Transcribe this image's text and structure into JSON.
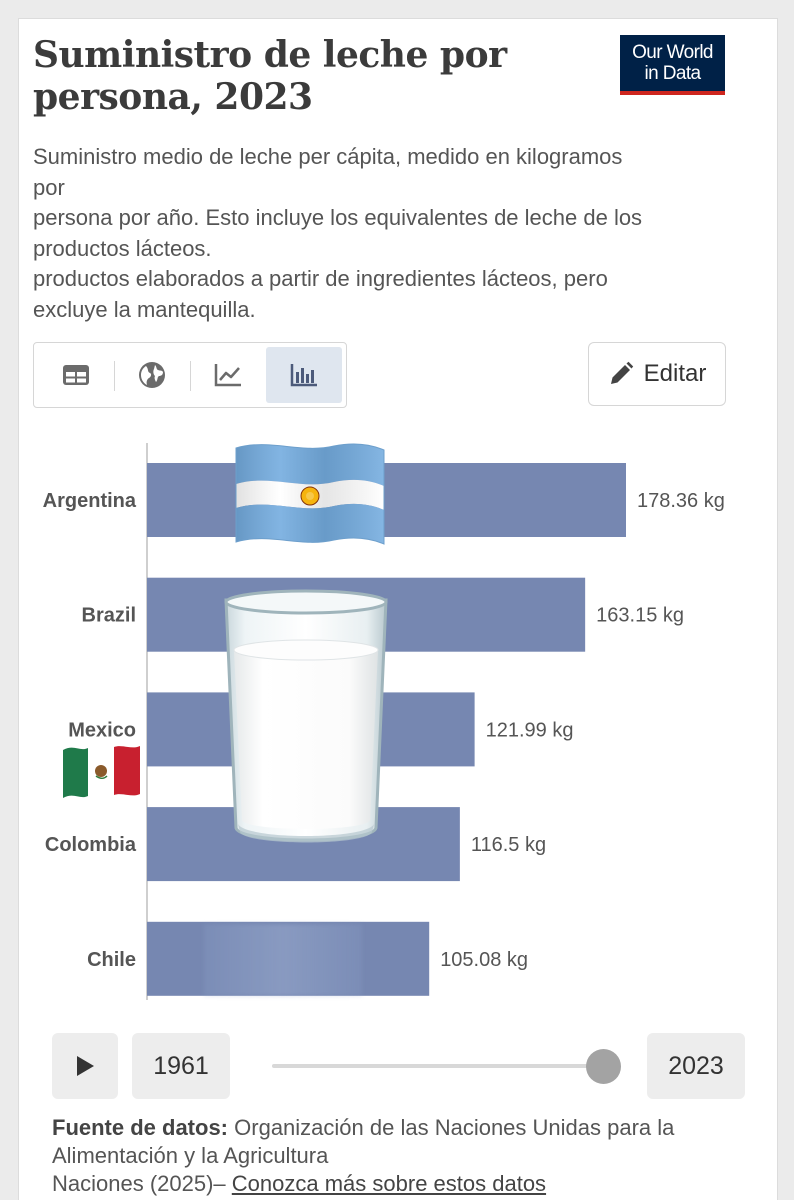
{
  "header": {
    "title": "Suministro de leche por persona, 2023",
    "logo_line1": "Our World",
    "logo_line2": "in Data",
    "subtitle_lines": [
      "Suministro medio de leche per cápita, medido en kilogramos",
      "por",
      "persona por año. Esto incluye los equivalentes de leche de los",
      "productos lácteos.",
      "productos elaborados a partir de ingredientes lácteos, pero",
      "excluye la mantequilla."
    ]
  },
  "toolbar": {
    "tabs": [
      {
        "icon": "table-icon",
        "active": false
      },
      {
        "icon": "globe-icon",
        "active": false
      },
      {
        "icon": "line-chart-icon",
        "active": false
      },
      {
        "icon": "bar-chart-icon",
        "active": true
      }
    ],
    "edit_label": "Editar",
    "edit_icon": "pencil-icon"
  },
  "chart_data": {
    "type": "bar",
    "orientation": "horizontal",
    "categories": [
      "Argentina",
      "Brazil",
      "Mexico",
      "Colombia",
      "Chile"
    ],
    "values": [
      178.36,
      163.15,
      121.99,
      116.5,
      105.08
    ],
    "value_labels": [
      "178.36 kg",
      "163.15 kg",
      "121.99 kg",
      "116.5 kg",
      "105.08 kg"
    ],
    "unit": "kg",
    "bar_color": "#7687b1",
    "xlim": [
      0,
      178.36
    ]
  },
  "decorations": {
    "argentina_flag_icon": "argentina-flag-icon",
    "mexico_flag_icon": "mexico-flag-icon",
    "milk_glass_icon": "milk-glass-icon"
  },
  "timeline": {
    "start_year": "1961",
    "end_year": "2023",
    "position": 1.0
  },
  "source": {
    "label": "Fuente de datos:",
    "line1": "Organización de las Naciones Unidas para la",
    "line2": "Alimentación y la Agricultura",
    "line3": "Naciones (2025)– ",
    "link": "Conozca más sobre estos datos"
  }
}
